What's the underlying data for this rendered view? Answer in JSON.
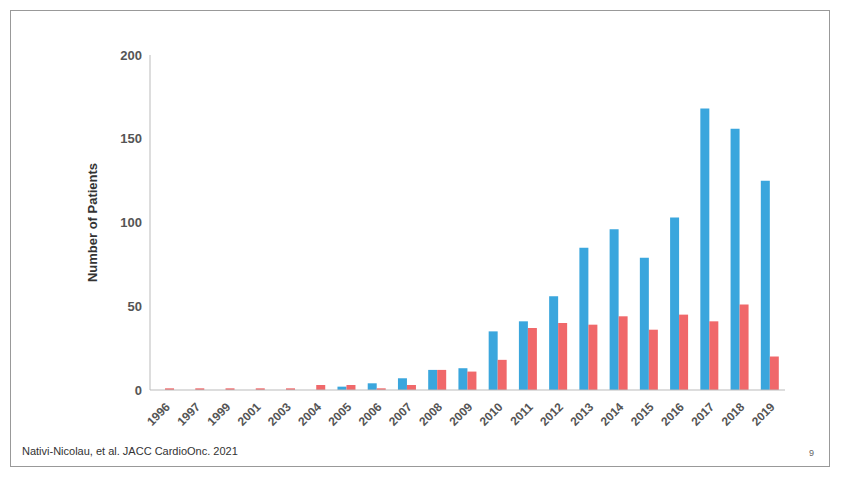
{
  "chart_data": {
    "type": "bar",
    "y_label": "Number of Patients",
    "categories": [
      "1996",
      "1997",
      "1999",
      "2001",
      "2003",
      "2004",
      "2005",
      "2006",
      "2007",
      "2008",
      "2009",
      "2010",
      "2011",
      "2012",
      "2013",
      "2014",
      "2015",
      "2016",
      "2017",
      "2018",
      "2019"
    ],
    "series": [
      {
        "color": "#3aa6dd",
        "values": [
          0,
          0,
          0,
          0,
          0,
          0,
          2,
          4,
          7,
          12,
          13,
          35,
          41,
          56,
          85,
          96,
          79,
          103,
          168,
          156,
          125
        ]
      },
      {
        "color": "#f0686a",
        "values": [
          1,
          1,
          1,
          1,
          1,
          3,
          3,
          1,
          3,
          12,
          11,
          18,
          37,
          40,
          39,
          44,
          36,
          45,
          41,
          51,
          20
        ]
      }
    ],
    "ylim": [
      0,
      200
    ],
    "yticks": [
      0,
      50,
      100,
      150,
      200
    ],
    "grid": false,
    "annotations": [
      "Nativi-Nicolau, et al. JACC CardioOnc. 2021",
      "9"
    ]
  }
}
